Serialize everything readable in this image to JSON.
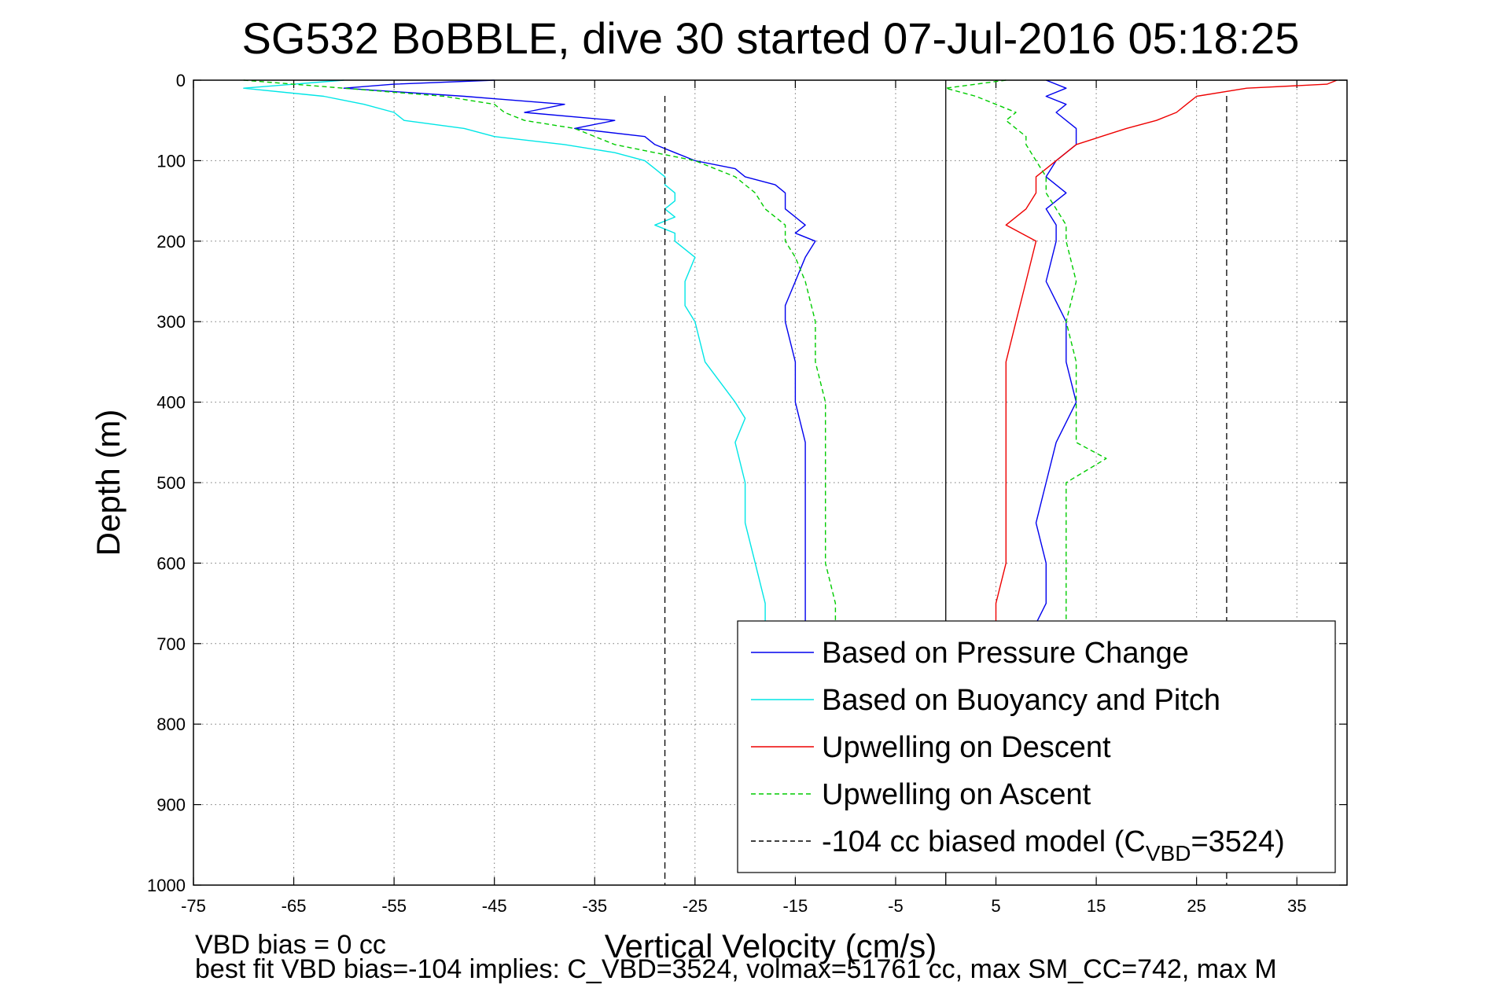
{
  "chart_data": {
    "type": "line",
    "title": "SG532 BoBBLE, dive 30 started 07-Jul-2016 05:18:25",
    "xlabel": "Vertical Velocity (cm/s)",
    "ylabel": "Depth (m)",
    "xlim": [
      -75,
      40
    ],
    "ylim": [
      1000,
      0
    ],
    "xticks": [
      -75,
      -65,
      -55,
      -45,
      -35,
      -25,
      -15,
      -5,
      5,
      15,
      25,
      35
    ],
    "yticks": [
      0,
      100,
      200,
      300,
      400,
      500,
      600,
      700,
      800,
      900,
      1000
    ],
    "grid": true,
    "legend_position": "bottom-right",
    "footnotes": [
      "VBD bias = 0 cc",
      "best fit VBD bias=-104 implies: C_VBD=3524, volmax=51761 cc, max SM_CC=742, max M"
    ],
    "series": [
      {
        "name": "Based on Pressure Change",
        "color": "#0000ee",
        "style": "solid",
        "segments": [
          {
            "depth": [
              0,
              5,
              10,
              20,
              30,
              40,
              50,
              60,
              70,
              80,
              90,
              100,
              110,
              120,
              130,
              140,
              150,
              160,
              170,
              180,
              190,
              200,
              220,
              250,
              280,
              300,
              350,
              400,
              450,
              500,
              550,
              600,
              650,
              675
            ],
            "value": [
              -45,
              -55,
              -60,
              -48,
              -38,
              -42,
              -33,
              -37,
              -30,
              -29,
              -27,
              -25,
              -21,
              -20,
              -17,
              -16,
              -16,
              -16,
              -15,
              -14,
              -15,
              -13,
              -14,
              -15,
              -16,
              -16,
              -15,
              -15,
              -14,
              -14,
              -14,
              -14,
              -14,
              -14
            ]
          },
          {
            "depth": [
              0,
              10,
              20,
              30,
              40,
              60,
              80,
              100,
              120,
              140,
              160,
              180,
              200,
              250,
              300,
              350,
              400,
              450,
              500,
              550,
              600,
              650,
              675
            ],
            "value": [
              10,
              12,
              10,
              12,
              11,
              13,
              13,
              11,
              10,
              12,
              10,
              11,
              11,
              10,
              12,
              12,
              13,
              11,
              10,
              9,
              10,
              10,
              9
            ]
          }
        ]
      },
      {
        "name": "Based on Buoyancy and Pitch",
        "color": "#00e6e6",
        "style": "solid",
        "segments": [
          {
            "depth": [
              0,
              10,
              20,
              30,
              40,
              50,
              60,
              70,
              80,
              90,
              100,
              110,
              120,
              130,
              140,
              150,
              160,
              170,
              180,
              190,
              200,
              220,
              250,
              280,
              300,
              350,
              400,
              420,
              450,
              500,
              550,
              600,
              650,
              675
            ],
            "value": [
              -60,
              -70,
              -62,
              -58,
              -55,
              -54,
              -48,
              -45,
              -38,
              -33,
              -30,
              -29,
              -28,
              -28,
              -27,
              -27,
              -28,
              -27,
              -29,
              -27,
              -27,
              -25,
              -26,
              -26,
              -25,
              -24,
              -21,
              -20,
              -21,
              -20,
              -20,
              -19,
              -18,
              -18
            ]
          }
        ]
      },
      {
        "name": "Upwelling on Descent",
        "color": "#ee0000",
        "style": "solid",
        "segments": [
          {
            "depth": [
              0,
              5,
              10,
              20,
              30,
              40,
              50,
              60,
              80,
              100,
              120,
              140,
              160,
              180,
              200,
              250,
              300,
              350,
              400,
              450,
              500,
              550,
              600,
              650,
              675
            ],
            "value": [
              39,
              38,
              30,
              25,
              24,
              23,
              21,
              18,
              13,
              11,
              9,
              9,
              8,
              6,
              9,
              8,
              7,
              6,
              6,
              6,
              6,
              6,
              6,
              5,
              5
            ]
          }
        ]
      },
      {
        "name": "Upwelling on Ascent",
        "color": "#00cc00",
        "style": "dashed",
        "segments": [
          {
            "depth": [
              0,
              10,
              20,
              30,
              40,
              50,
              60,
              70,
              80,
              90,
              100,
              120,
              140,
              160,
              180,
              200,
              220,
              250,
              300,
              350,
              400,
              450,
              500,
              550,
              600,
              650,
              675
            ],
            "value": [
              -70,
              -60,
              -50,
              -45,
              -44,
              -42,
              -37,
              -35,
              -33,
              -29,
              -25,
              -21,
              -19,
              -18,
              -16,
              -16,
              -15,
              -14,
              -13,
              -13,
              -12,
              -12,
              -12,
              -12,
              -12,
              -11,
              -11
            ]
          },
          {
            "depth": [
              0,
              10,
              20,
              30,
              40,
              50,
              60,
              70,
              80,
              100,
              120,
              140,
              160,
              180,
              200,
              250,
              300,
              350,
              400,
              450,
              470,
              500,
              550,
              600,
              650,
              675
            ],
            "value": [
              6,
              0,
              3,
              5,
              7,
              6,
              7,
              8,
              8,
              9,
              10,
              10,
              11,
              12,
              12,
              13,
              12,
              13,
              13,
              13,
              16,
              12,
              12,
              12,
              12,
              12
            ]
          }
        ]
      },
      {
        "name": "-104 cc biased model (C",
        "subscript": "VBD",
        "suffix": "=3524)",
        "color": "#000000",
        "style": "dashed",
        "vlines": [
          -28,
          28
        ]
      }
    ],
    "reference_vline": 0
  }
}
